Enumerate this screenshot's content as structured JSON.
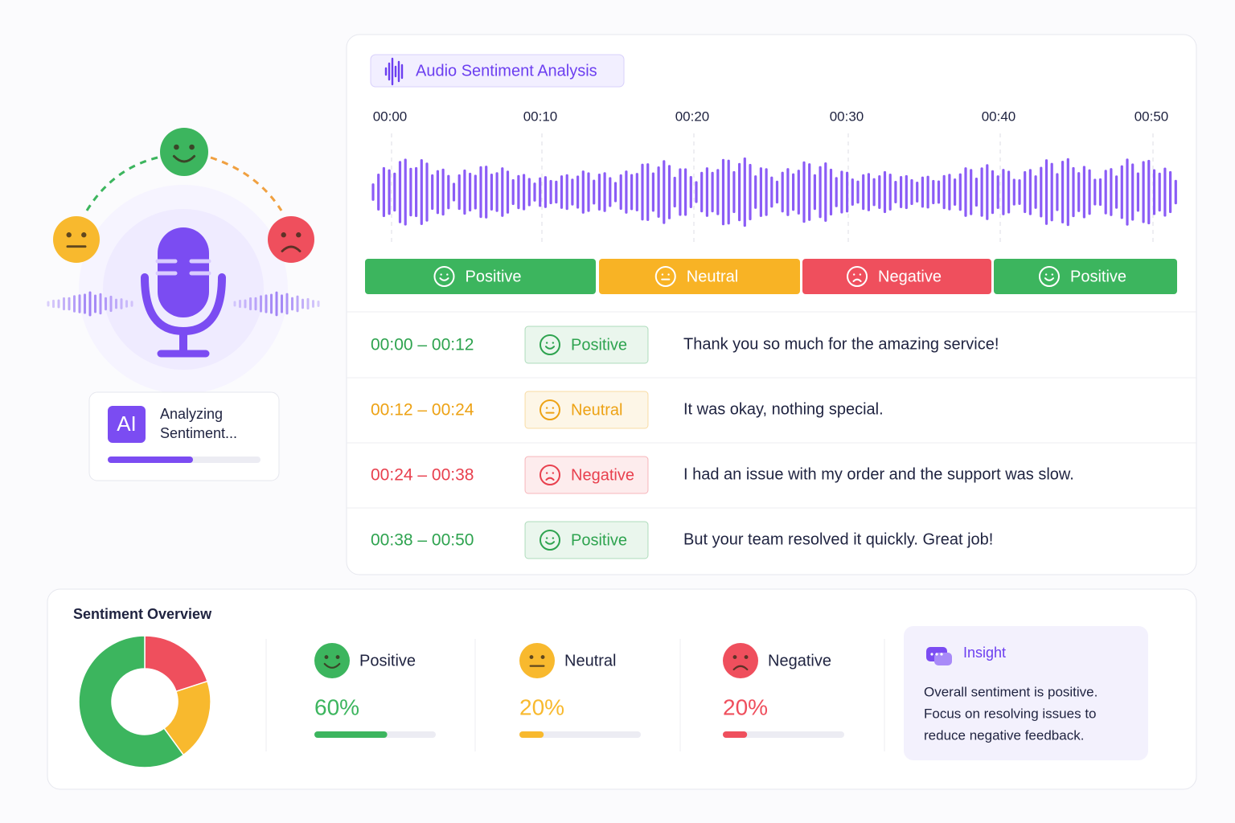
{
  "left_panel": {
    "badge": "AI",
    "status_lines": [
      "Analyzing",
      "Sentiment..."
    ]
  },
  "analysis": {
    "title": "Audio Sentiment Analysis",
    "timeline": [
      "00:00",
      "00:10",
      "00:20",
      "00:30",
      "00:40",
      "00:50"
    ],
    "segments": [
      {
        "label": "Positive",
        "color": "#3cb55e",
        "icon": "smile"
      },
      {
        "label": "Neutral",
        "color": "#f8b325",
        "icon": "flat"
      },
      {
        "label": "Negative",
        "color": "#ef4f5d",
        "icon": "frown"
      },
      {
        "label": "Positive",
        "color": "#3cb55e",
        "icon": "smile"
      }
    ],
    "rows": [
      {
        "time": "00:00 – 00:12",
        "label": "Positive",
        "text": "Thank you so much for the amazing service!",
        "color": "#2ea34f",
        "icon": "smile"
      },
      {
        "time": "00:12 – 00:24",
        "label": "Neutral",
        "text": "It was okay, nothing special.",
        "color": "#eda214",
        "icon": "flat"
      },
      {
        "time": "00:24 – 00:38",
        "label": "Negative",
        "text": "I had an issue with my order and the support was slow.",
        "color": "#e8404e",
        "icon": "frown"
      },
      {
        "time": "00:38 – 00:50",
        "label": "Positive",
        "text": "But your team resolved it quickly. Great job!",
        "color": "#2ea34f",
        "icon": "smile"
      }
    ]
  },
  "overview": {
    "title": "Sentiment Overview",
    "type": "donut",
    "items": [
      {
        "name": "Positive",
        "value": 60,
        "value_label": "60%",
        "color": "#3cb55e",
        "icon": "smile"
      },
      {
        "name": "Neutral",
        "value": 20,
        "value_label": "20%",
        "color": "#f8b92e",
        "icon": "flat"
      },
      {
        "name": "Negative",
        "value": 20,
        "value_label": "20%",
        "color": "#ef4f5d",
        "icon": "frown"
      }
    ],
    "insight": {
      "title": "Insight",
      "lines": [
        "Overall sentiment is positive.",
        "Focus on resolving issues to",
        "reduce negative feedback."
      ]
    }
  }
}
